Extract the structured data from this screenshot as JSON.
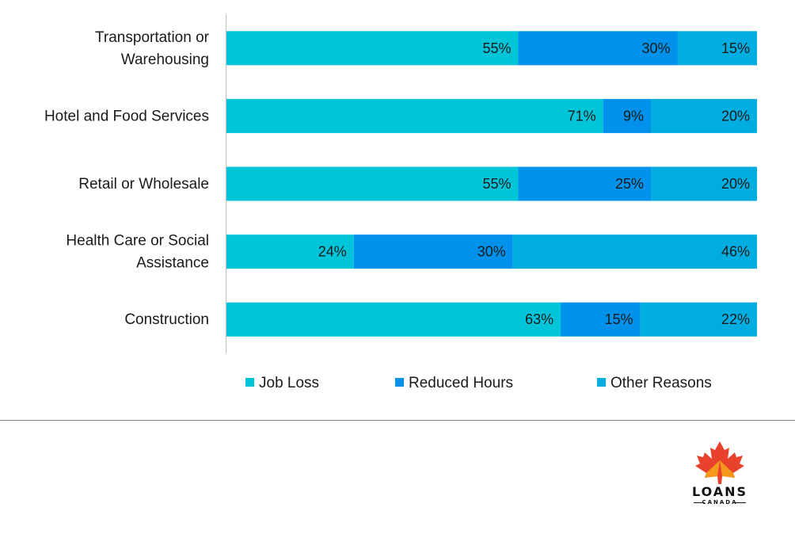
{
  "chart_data": {
    "type": "bar",
    "orientation": "horizontal",
    "stacked": true,
    "categories": [
      "Transportation or Warehousing",
      "Hotel and Food Services",
      "Retail or Wholesale",
      "Health Care or Social Assistance",
      "Construction"
    ],
    "category_label_lines": [
      [
        "Transportation or",
        "Warehousing"
      ],
      [
        "Hotel and Food Services"
      ],
      [
        "Retail or Wholesale"
      ],
      [
        "Health Care or Social",
        "Assistance"
      ],
      [
        "Construction"
      ]
    ],
    "series": [
      {
        "name": "Job Loss",
        "color": "#00c5d9",
        "values": [
          55,
          71,
          55,
          24,
          63
        ]
      },
      {
        "name": "Reduced Hours",
        "color": "#0091ea",
        "values": [
          30,
          9,
          25,
          30,
          15
        ]
      },
      {
        "name": "Other Reasons",
        "color": "#00ade0",
        "values": [
          15,
          20,
          20,
          46,
          22
        ]
      }
    ],
    "value_suffix": "%",
    "xlim": [
      0,
      100
    ],
    "title": "",
    "xlabel": "",
    "ylabel": "",
    "legend_position": "bottom"
  },
  "logo": {
    "brand": "LOANS",
    "sub": "CANADA",
    "leaf_color": "#e8412c",
    "leaf_accent": "#f7a21b"
  }
}
